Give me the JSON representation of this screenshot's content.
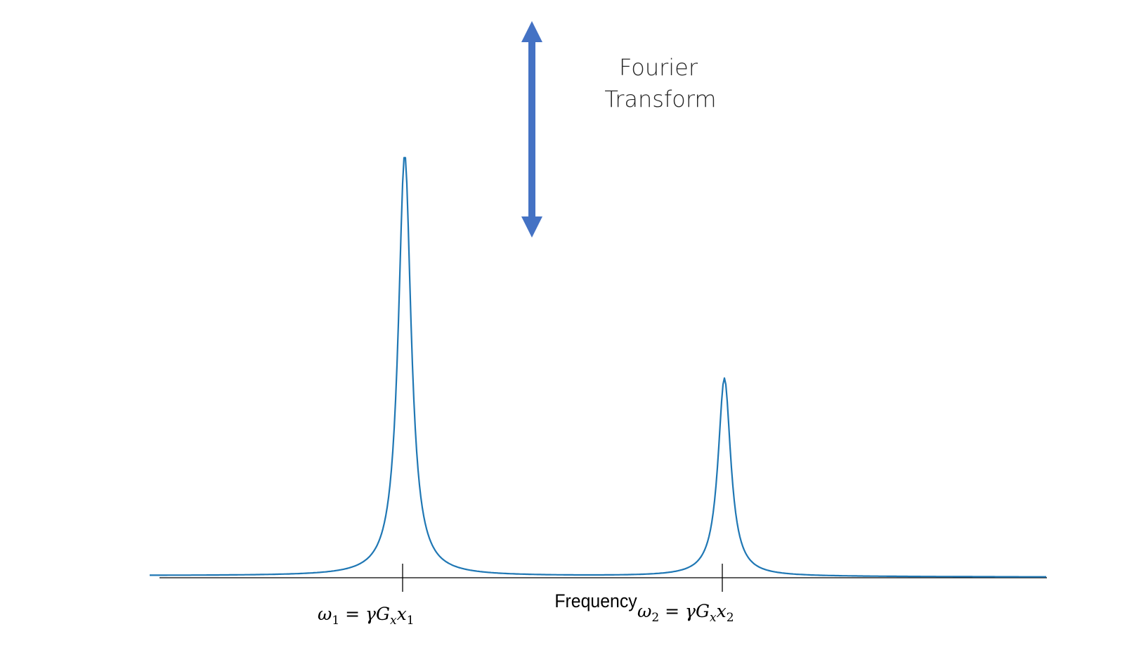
{
  "arrow": {
    "color": "#4472C4"
  },
  "annotation": {
    "line1": "Fourier",
    "line2": "Transform"
  },
  "spectrum": {
    "curve_color": "#1F77B4",
    "axis_color": "#000000",
    "axis_label": "Frequency",
    "peaks": [
      {
        "name": "peak-1",
        "relative_height": 1.0,
        "label_omega": "ω",
        "label_omega_sub": "1",
        "label_rest": " = γG",
        "label_G_sub": "x",
        "label_x": "x",
        "label_x_sub": "1"
      },
      {
        "name": "peak-2",
        "relative_height": 0.47,
        "label_omega": "ω",
        "label_omega_sub": "2",
        "label_rest": " = γG",
        "label_G_sub": "x",
        "label_x": "x",
        "label_x_sub": "2"
      }
    ]
  }
}
